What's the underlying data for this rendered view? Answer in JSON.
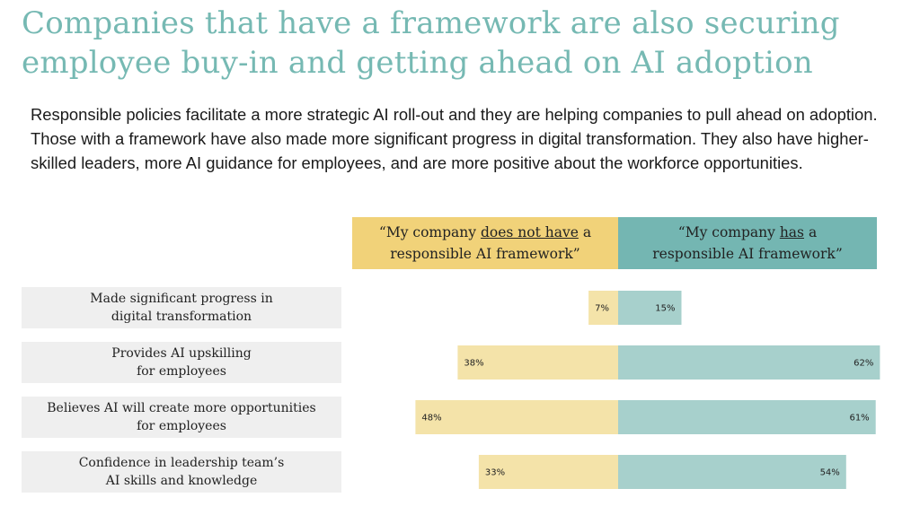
{
  "title": {
    "line1": "Companies that have a framework are also securing",
    "line2": "employee buy-in and getting ahead on AI adoption"
  },
  "subtitle": "Responsible policies facilitate a more strategic AI roll-out and they are helping companies to pull ahead on adoption. Those with a framework have also made more significant progress in digital transformation. They also have higher-skilled leaders, more AI guidance for employees, and are more positive about the workforce opportunities.",
  "headers": {
    "left": {
      "pre": "“My company ",
      "underlined": "does not have",
      "mid": " a",
      "line2": "responsible AI framework”"
    },
    "right": {
      "pre": "“My company ",
      "underlined": "has",
      "mid": " a",
      "line2": "responsible AI framework”"
    }
  },
  "colors": {
    "title": "#76b9b3",
    "left_header": "#f1d279",
    "right_header": "#74b6b2",
    "left_bar": "#f4e3a9",
    "right_bar": "#a7d0cc",
    "label_bg": "#efefef"
  },
  "chart_data": {
    "type": "bar",
    "orientation": "horizontal-diverging",
    "categories": [
      [
        "Made significant progress in",
        "digital transformation"
      ],
      [
        "Provides AI upskilling",
        "for employees"
      ],
      [
        "Believes AI will create more opportunities",
        "for employees"
      ],
      [
        "Confidence in leadership team’s",
        "AI skills and knowledge"
      ]
    ],
    "series": [
      {
        "name": "“My company does not have a responsible AI framework”",
        "values": [
          7,
          38,
          48,
          33
        ],
        "labels": [
          "7%",
          "38%",
          "48%",
          "33%"
        ],
        "color": "#f4e3a9",
        "direction": "left"
      },
      {
        "name": "“My company has a responsible AI framework”",
        "values": [
          15,
          62,
          61,
          54
        ],
        "labels": [
          "15%",
          "62%",
          "61%",
          "54%"
        ],
        "color": "#a7d0cc",
        "direction": "right"
      }
    ],
    "xlim": [
      0,
      62
    ],
    "grid": false
  }
}
